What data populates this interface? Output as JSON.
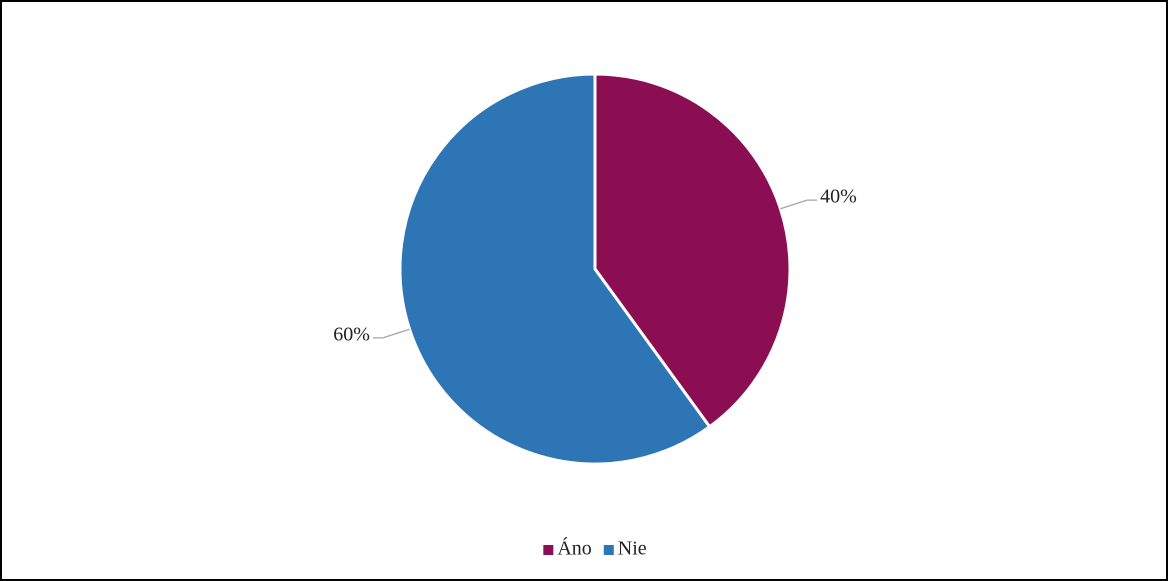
{
  "chart_data": {
    "type": "pie",
    "categories": [
      "Áno",
      "Nie"
    ],
    "values": [
      40,
      60
    ],
    "value_labels": [
      "40%",
      "60%"
    ],
    "colors": [
      "#8b0e53",
      "#2e75b6"
    ],
    "legend": "bottom"
  }
}
